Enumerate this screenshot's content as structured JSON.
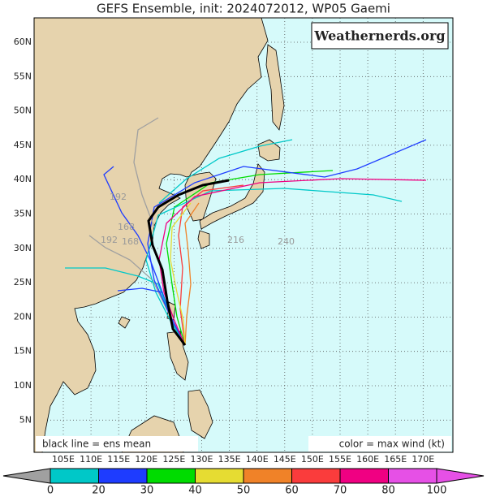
{
  "title": "GEFS Ensemble, init: 2024072012, WP05 Gaemi",
  "watermark": "Weathernerds.org",
  "lat_labels": [
    "60N",
    "55N",
    "50N",
    "45N",
    "40N",
    "35N",
    "30N",
    "25N",
    "20N",
    "15N",
    "10N",
    "5N"
  ],
  "lon_labels": [
    "105E",
    "110E",
    "115E",
    "120E",
    "125E",
    "130E",
    "135E",
    "140E",
    "145E",
    "150E",
    "155E",
    "160E",
    "165E",
    "170E"
  ],
  "notes": {
    "mean": "black line = ens mean",
    "color": "color = max wind (kt)"
  },
  "track_labels": [
    "192",
    "168",
    "192",
    "168",
    "216",
    "240"
  ],
  "colorbar": {
    "labels": [
      0,
      20,
      30,
      40,
      50,
      60,
      70,
      80,
      100
    ],
    "colors": [
      "#a0a0a0",
      "#00c8c8",
      "#1e3cff",
      "#00dc00",
      "#e6dc32",
      "#f08228",
      "#fa3c3c",
      "#f00082",
      "#e650e6"
    ]
  }
}
